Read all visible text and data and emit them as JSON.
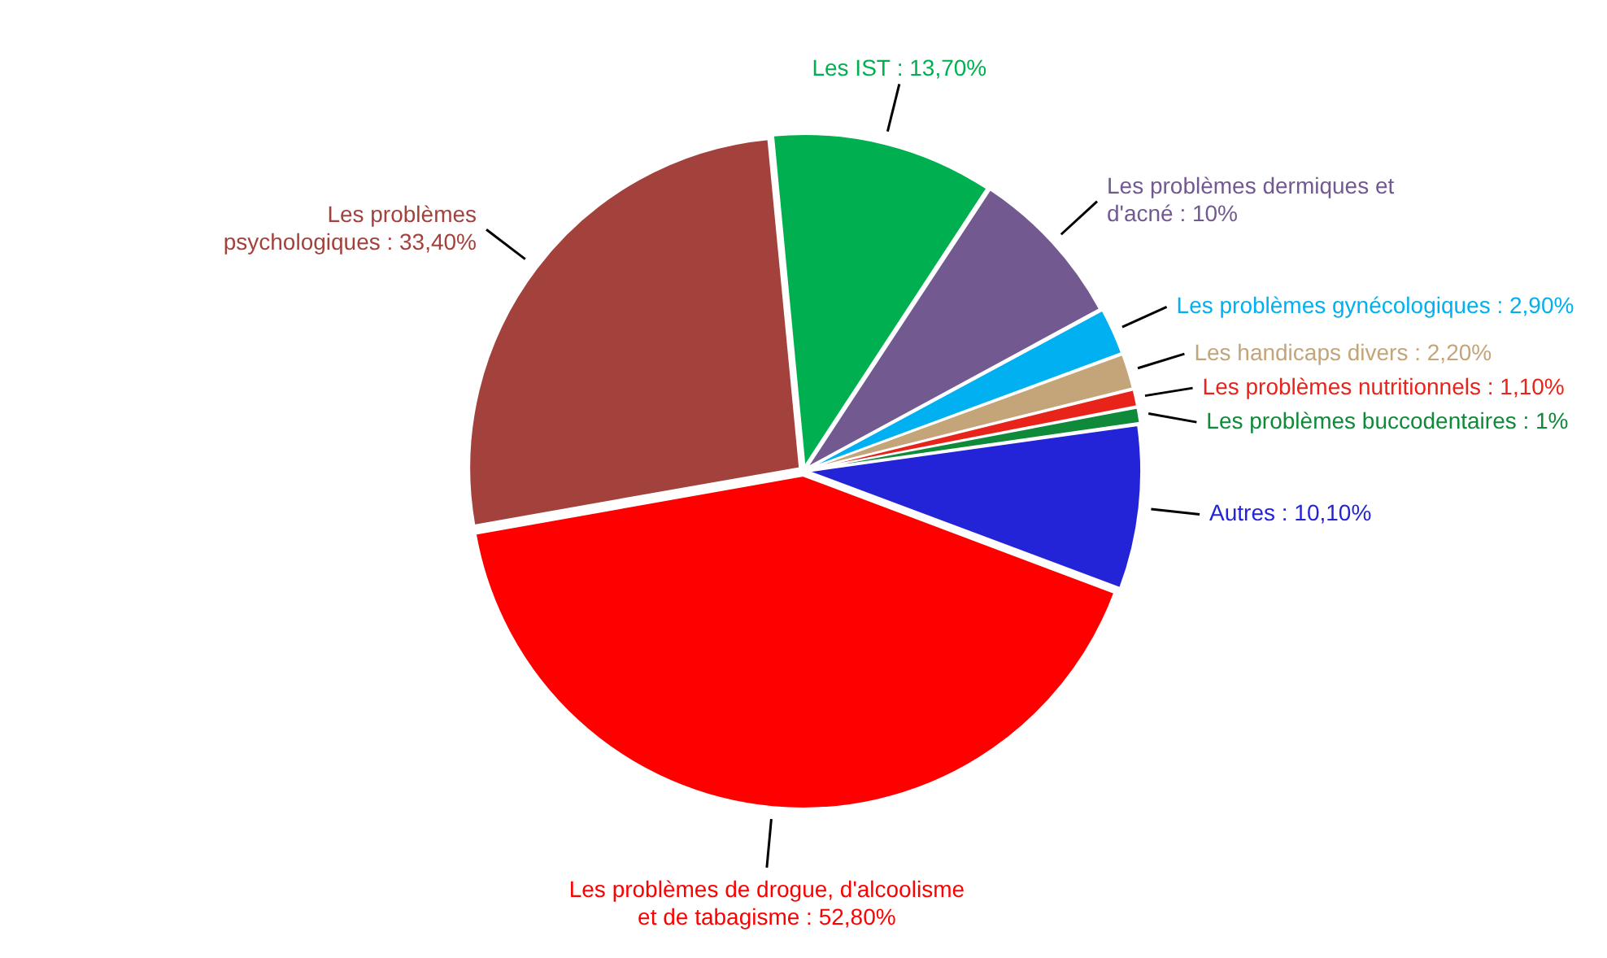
{
  "chart_data": {
    "type": "pie",
    "categories": [
      "Les problèmes psychologiques",
      "Les IST",
      "Les problèmes dermiques et d'acné",
      "Les problèmes gynécologiques",
      "Les handicaps divers",
      "Les problèmes nutritionnels",
      "Les problèmes buccodentaires",
      "Autres",
      "Les problèmes de drogue, d'alcoolisme et de tabagisme"
    ],
    "values": [
      33.4,
      13.7,
      10,
      2.9,
      2.2,
      1.1,
      1,
      10.1,
      52.8
    ],
    "value_labels": [
      "33,40%",
      "13,70%",
      "10%",
      "2,90%",
      "2,20%",
      "1,10%",
      "1%",
      "10,10%",
      "52,80%"
    ],
    "colors": [
      "#a3423d",
      "#00b050",
      "#72598f",
      "#00b0f0",
      "#c4a57a",
      "#e8231a",
      "#0f8a3a",
      "#2323d8",
      "#ff0000"
    ],
    "legend": false
  }
}
